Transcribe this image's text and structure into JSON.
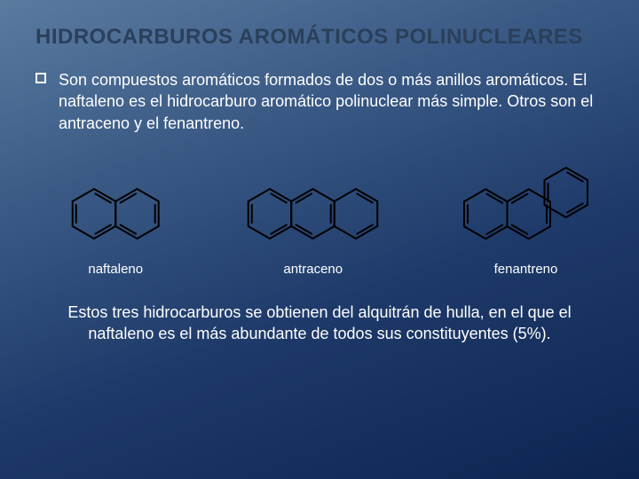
{
  "title": "HIDROCARBUROS AROMÁTICOS POLINUCLEARES",
  "body": "Son compuestos aromáticos formados de dos o más anillos aromáticos.  El naftaleno es el hidrocarburo aromático polinuclear más simple.  Otros son el antraceno y el fenantreno.",
  "structures": [
    {
      "label": "naftaleno",
      "type": "naphthalene"
    },
    {
      "label": "antraceno",
      "type": "anthracene"
    },
    {
      "label": "fenantreno",
      "type": "phenanthrene"
    }
  ],
  "footer": "Estos tres hidrocarburos se obtienen del alquitrán de hulla, en el que el naftaleno es el más abundante de todos sus constituyentes (5%).",
  "style": {
    "stroke": "#000000",
    "stroke_width": 2,
    "inner_bond_gap": 4,
    "hex_radius": 28,
    "bg_gradient": [
      "#5a7ba0",
      "#3a5a85",
      "#1e3a6a",
      "#0d2450"
    ],
    "title_color": "#2a3f5a",
    "text_color": "#ffffff",
    "body_fontsize": 18,
    "title_fontsize": 24,
    "label_fontsize": 15
  }
}
